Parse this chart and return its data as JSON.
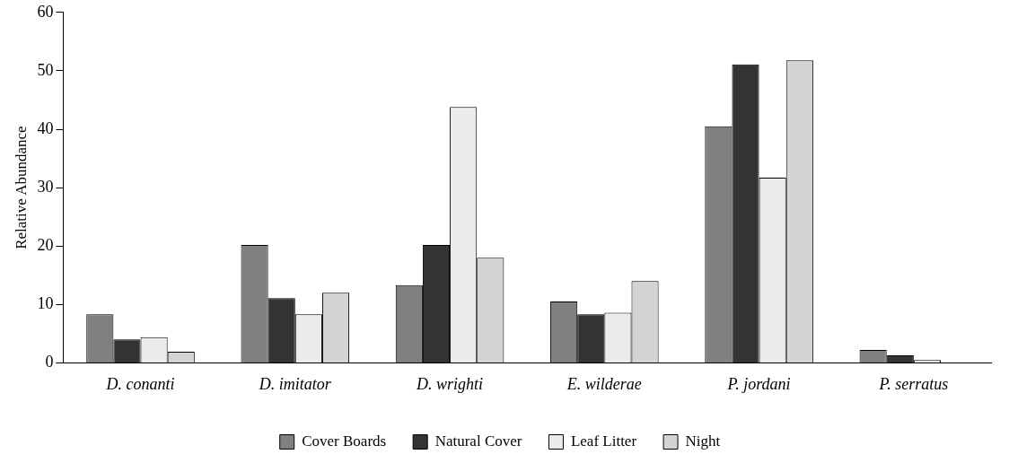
{
  "chart_data": {
    "type": "bar",
    "ylabel": "Relative Abundance",
    "categories": [
      "D. conanti",
      "D. imitator",
      "D. wrighti",
      "E. wilderae",
      "P. jordani",
      "P. serratus"
    ],
    "series": [
      {
        "name": "Cover Boards",
        "color": "#808080",
        "values": [
          8.3,
          20.2,
          13.3,
          10.5,
          40.5,
          2.2
        ]
      },
      {
        "name": "Natural Cover",
        "color": "#333333",
        "values": [
          4.0,
          11.1,
          20.2,
          8.3,
          51.1,
          1.3
        ]
      },
      {
        "name": "Leaf Litter",
        "color": "#ebebeb",
        "values": [
          4.4,
          8.3,
          43.8,
          8.6,
          31.7,
          0.5
        ]
      },
      {
        "name": "Night",
        "color": "#d4d4d4",
        "values": [
          1.9,
          12.0,
          18.0,
          14.0,
          51.8,
          0
        ]
      }
    ],
    "ylim": [
      0,
      60
    ],
    "yticks": [
      0,
      10,
      20,
      30,
      40,
      50,
      60
    ],
    "grid": false,
    "legend": "bottom"
  }
}
